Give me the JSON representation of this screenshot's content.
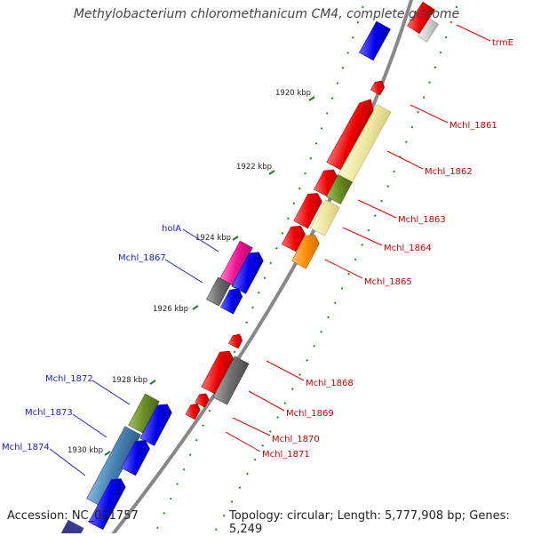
{
  "title": "Methylobacterium chloromethanicum CM4, complete genome",
  "footer": {
    "accession": "Accession: NC_011757",
    "topology": "Topology: circular; Length: 5,777,908 bp; Genes: 5,249"
  },
  "ticks": [
    "1920 kbp",
    "1922 kbp",
    "1924 kbp",
    "1926 kbp",
    "1928 kbp",
    "1930 kbp"
  ],
  "gene_labels": {
    "trmE": "trmE",
    "g1861": "Mchl_1861",
    "g1862": "Mchl_1862",
    "g1863": "Mchl_1863",
    "g1864": "Mchl_1864",
    "g1865": "Mchl_1865",
    "g1868": "Mchl_1868",
    "g1869": "Mchl_1869",
    "g1870": "Mchl_1870",
    "g1871": "Mchl_1871",
    "holA": "holA",
    "g1867": "Mchl_1867",
    "g1872": "Mchl_1872",
    "g1873": "Mchl_1873",
    "g1874": "Mchl_1874"
  },
  "colors": {
    "red": "#ee0000",
    "blue": "#0000ee",
    "yellow": "#eee8a0",
    "olive": "#6b8e23",
    "orange": "#ff8c00",
    "gray": "#6e6e6e",
    "magenta": "#ee1493",
    "steelblue": "#4682b4",
    "backbone": "#888888",
    "tick": "#1f7a1f",
    "label_red": "#cc0000",
    "label_blue": "#1a1acc"
  }
}
